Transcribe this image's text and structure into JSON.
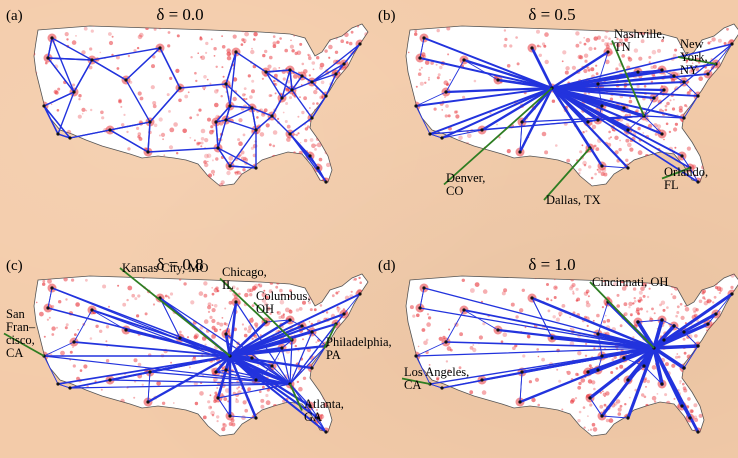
{
  "panels": [
    {
      "tag": "(a)",
      "title": "δ = 0.0",
      "labels": []
    },
    {
      "tag": "(b)",
      "title": "δ = 0.5",
      "labels": [
        {
          "lines": [
            "Nashville,",
            "TN"
          ]
        },
        {
          "lines": [
            "New",
            "York,",
            "NY"
          ]
        },
        {
          "lines": [
            "Denver,",
            "CO"
          ]
        },
        {
          "lines": [
            "Dallas, TX"
          ]
        },
        {
          "lines": [
            "Orlando,",
            "FL"
          ]
        }
      ]
    },
    {
      "tag": "(c)",
      "title": "δ = 0.8",
      "labels": [
        {
          "lines": [
            "Kansas City, MO"
          ]
        },
        {
          "lines": [
            "Chicago,",
            "IL"
          ]
        },
        {
          "lines": [
            "Columbus,",
            "OH"
          ]
        },
        {
          "lines": [
            "San",
            "Fran–",
            "cisco,",
            "CA"
          ]
        },
        {
          "lines": [
            "Philadelphia,",
            "PA"
          ]
        },
        {
          "lines": [
            "Atlanta,",
            "GA"
          ]
        }
      ]
    },
    {
      "tag": "(d)",
      "title": "δ = 1.0",
      "labels": [
        {
          "lines": [
            "Cincinnati, OH"
          ]
        },
        {
          "lines": [
            "Los Angeles,",
            "CA"
          ]
        }
      ]
    }
  ],
  "colors": {
    "background": "#f3cba9",
    "land": "#ffffff",
    "population": "#e8343a",
    "network": "#2233dd",
    "annotation_arrow": "#2e7d22",
    "text": "#000000"
  }
}
